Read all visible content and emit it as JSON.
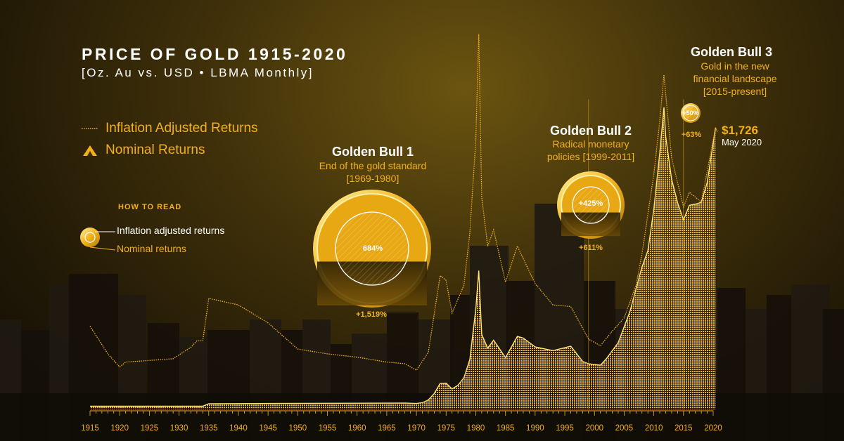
{
  "title": "PRICE OF GOLD 1915-2020",
  "subtitle": "[Oz. Au vs. USD • LBMA Monthly]",
  "legend": {
    "inflation": "Inflation Adjusted Returns",
    "nominal": "Nominal Returns"
  },
  "how_to_read": {
    "heading": "HOW TO READ",
    "inflation": "Inflation adjusted returns",
    "nominal": "Nominal returns"
  },
  "bulls": [
    {
      "title": "Golden Bull 1",
      "desc1": "End of the gold standard",
      "desc2": "[1969-1980]",
      "inflation_return": "684%",
      "nominal_return": "+1,519%"
    },
    {
      "title": "Golden Bull 2",
      "desc1": "Radical monetary",
      "desc2": "policies [1999-2011]",
      "inflation_return": "+425%",
      "nominal_return": "+611%"
    },
    {
      "title": "Golden Bull 3",
      "desc1": "Gold in the new",
      "desc2": "financial landscape",
      "desc3": "[2015-present]",
      "inflation_return": "+50%",
      "nominal_return": "+63%"
    }
  ],
  "latest": {
    "price": "$1,726",
    "date": "May 2020"
  },
  "colors": {
    "gold": "#f2b019",
    "white": "#ffffff",
    "dark": "#1a1406"
  },
  "chart_data": {
    "type": "area",
    "title": "PRICE OF GOLD 1915-2020",
    "xlabel": "",
    "ylabel": "",
    "x_ticks": [
      "1915",
      "1920",
      "1925",
      "1930",
      "1935",
      "1940",
      "1945",
      "1950",
      "1955",
      "1960",
      "1965",
      "1970",
      "1975",
      "1980",
      "1985",
      "1990",
      "1995",
      "2000",
      "2005",
      "2010",
      "2015",
      "2020"
    ],
    "series": [
      {
        "name": "Nominal Returns",
        "x": [
          1915,
          1934,
          1935,
          1968,
          1970,
          1971,
          1972,
          1973,
          1974,
          1975,
          1976,
          1977,
          1978,
          1979,
          1980,
          1980.5,
          1981,
          1982,
          1983,
          1985,
          1987,
          1988,
          1990,
          1993,
          1996,
          1998,
          1999,
          2001,
          2002,
          2004,
          2006,
          2008,
          2009,
          2010,
          2011,
          2011.7,
          2012,
          2013,
          2014,
          2015,
          2016,
          2017,
          2018,
          2019,
          2020.4
        ],
        "values": [
          20,
          20,
          35,
          39,
          36,
          41,
          58,
          97,
          159,
          161,
          125,
          148,
          193,
          306,
          615,
          850,
          460,
          375,
          424,
          317,
          447,
          437,
          383,
          360,
          387,
          294,
          279,
          271,
          310,
          409,
          603,
          872,
          972,
          1225,
          1572,
          1850,
          1670,
          1410,
          1266,
          1160,
          1250,
          1257,
          1268,
          1392,
          1726
        ]
      },
      {
        "name": "Inflation Adjusted Returns",
        "x": [
          1915,
          1918,
          1920,
          1921,
          1925,
          1929,
          1932,
          1933,
          1934,
          1935,
          1940,
          1945,
          1950,
          1955,
          1960,
          1965,
          1968,
          1970,
          1972,
          1974,
          1975,
          1976,
          1978,
          1979,
          1980,
          1980.5,
          1981,
          1982,
          1983,
          1985,
          1987,
          1990,
          1993,
          1996,
          1999,
          2001,
          2003,
          2005,
          2007,
          2008,
          2010,
          2011,
          2011.7,
          2013,
          2015,
          2016,
          2018,
          2020.4
        ],
        "values": [
          510,
          340,
          260,
          290,
          300,
          310,
          380,
          420,
          420,
          680,
          640,
          530,
          370,
          340,
          320,
          290,
          280,
          240,
          350,
          820,
          790,
          590,
          760,
          1080,
          1650,
          2300,
          1300,
          1000,
          1100,
          780,
          1000,
          770,
          640,
          630,
          430,
          390,
          480,
          560,
          760,
          950,
          1440,
          1770,
          2050,
          1540,
          1240,
          1330,
          1270,
          1726
        ]
      }
    ],
    "y_range": [
      0,
      2400
    ],
    "annotations": [
      {
        "label": "Golden Bull 1",
        "period": "1969-1980",
        "inflation_adjusted": "684%",
        "nominal": "+1,519%"
      },
      {
        "label": "Golden Bull 2",
        "period": "1999-2011",
        "inflation_adjusted": "+425%",
        "nominal": "+611%"
      },
      {
        "label": "Golden Bull 3",
        "period": "2015-present",
        "inflation_adjusted": "+50%",
        "nominal": "+63%"
      },
      {
        "label": "$1,726",
        "date": "May 2020"
      }
    ],
    "legend_position": "top-left"
  }
}
